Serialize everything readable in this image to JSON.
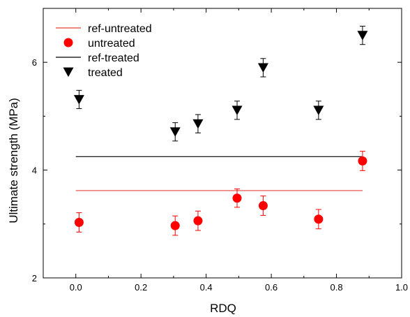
{
  "chart_data": {
    "type": "scatter",
    "xlabel": "RDQ",
    "ylabel": "Ultimate strength (MPa)",
    "xlim": [
      -0.1,
      1.0
    ],
    "ylim": [
      2,
      7
    ],
    "x_ticks": [
      0.0,
      0.2,
      0.4,
      0.6,
      0.8,
      1.0
    ],
    "x_tick_labels": [
      "0.0",
      "0.2",
      "0.4",
      "0.6",
      "0.8",
      "1.0"
    ],
    "y_ticks": [
      2,
      4,
      6
    ],
    "y_tick_labels": [
      "2",
      "4",
      "6"
    ],
    "y_minor_ticks": [
      3,
      5
    ],
    "grid": false,
    "legend_position": "top-left",
    "legend": [
      {
        "label": "ref-untreated",
        "kind": "line",
        "color": "#e8403a"
      },
      {
        "label": "untreated",
        "kind": "circle",
        "color": "#ff0000"
      },
      {
        "label": "ref-treated",
        "kind": "line",
        "color": "#000000"
      },
      {
        "label": "treated",
        "kind": "triangle-down",
        "color": "#000000"
      }
    ],
    "reference_lines": [
      {
        "name": "ref-untreated",
        "color": "#e8403a",
        "x": [
          0.0,
          0.88
        ],
        "y": 3.62
      },
      {
        "name": "ref-treated",
        "color": "#000000",
        "x": [
          0.0,
          0.88
        ],
        "y": 4.25
      }
    ],
    "series": [
      {
        "name": "untreated",
        "marker": "circle",
        "color": "#ff0000",
        "points": [
          {
            "x": 0.01,
            "y": 3.03,
            "err": 0.18
          },
          {
            "x": 0.305,
            "y": 2.97,
            "err": 0.18
          },
          {
            "x": 0.375,
            "y": 3.06,
            "err": 0.18
          },
          {
            "x": 0.495,
            "y": 3.48,
            "err": 0.17
          },
          {
            "x": 0.575,
            "y": 3.34,
            "err": 0.18
          },
          {
            "x": 0.745,
            "y": 3.09,
            "err": 0.18
          },
          {
            "x": 0.88,
            "y": 4.17,
            "err": 0.18
          }
        ]
      },
      {
        "name": "treated",
        "marker": "triangle-down",
        "color": "#000000",
        "points": [
          {
            "x": 0.01,
            "y": 5.31,
            "err": 0.17
          },
          {
            "x": 0.305,
            "y": 4.71,
            "err": 0.17
          },
          {
            "x": 0.375,
            "y": 4.86,
            "err": 0.17
          },
          {
            "x": 0.495,
            "y": 5.11,
            "err": 0.17
          },
          {
            "x": 0.575,
            "y": 5.9,
            "err": 0.17
          },
          {
            "x": 0.745,
            "y": 5.11,
            "err": 0.17
          },
          {
            "x": 0.88,
            "y": 6.5,
            "err": 0.17
          }
        ]
      }
    ]
  }
}
